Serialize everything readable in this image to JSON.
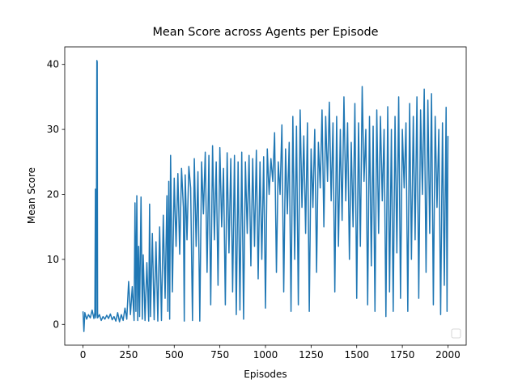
{
  "chart_data": {
    "type": "line",
    "title": "Mean Score across Agents per Episode",
    "x_label": "Episodes",
    "y_label": "Mean Score",
    "color": "#1f77b4",
    "legend": "lower right",
    "xlim": [
      -100,
      2100
    ],
    "ylim": [
      -3.2,
      42.7
    ],
    "xticks": [
      0,
      250,
      500,
      750,
      1000,
      1250,
      1500,
      1750,
      2000
    ],
    "yticks": [
      0,
      10,
      20,
      30,
      40
    ],
    "x": [
      0,
      5,
      10,
      20,
      30,
      40,
      50,
      60,
      65,
      68,
      70,
      72,
      76,
      78,
      80,
      90,
      100,
      110,
      120,
      130,
      140,
      150,
      160,
      170,
      180,
      190,
      200,
      210,
      220,
      230,
      240,
      250,
      260,
      270,
      280,
      285,
      290,
      295,
      300,
      305,
      310,
      318,
      325,
      330,
      340,
      350,
      360,
      365,
      370,
      380,
      390,
      400,
      410,
      420,
      430,
      440,
      450,
      460,
      465,
      470,
      475,
      480,
      490,
      500,
      510,
      520,
      530,
      540,
      550,
      555,
      560,
      570,
      580,
      590,
      600,
      610,
      620,
      630,
      640,
      650,
      660,
      670,
      680,
      690,
      700,
      710,
      720,
      730,
      740,
      750,
      760,
      770,
      780,
      790,
      800,
      810,
      820,
      830,
      840,
      850,
      860,
      870,
      880,
      890,
      900,
      910,
      920,
      930,
      940,
      950,
      960,
      970,
      980,
      990,
      1000,
      1010,
      1020,
      1030,
      1040,
      1050,
      1060,
      1070,
      1080,
      1090,
      1100,
      1110,
      1120,
      1130,
      1140,
      1150,
      1160,
      1170,
      1180,
      1190,
      1200,
      1210,
      1220,
      1230,
      1240,
      1250,
      1260,
      1270,
      1280,
      1290,
      1300,
      1310,
      1320,
      1330,
      1340,
      1350,
      1360,
      1370,
      1380,
      1390,
      1400,
      1410,
      1420,
      1430,
      1440,
      1450,
      1460,
      1470,
      1480,
      1490,
      1500,
      1510,
      1520,
      1530,
      1540,
      1550,
      1560,
      1570,
      1580,
      1590,
      1600,
      1610,
      1620,
      1630,
      1640,
      1650,
      1660,
      1670,
      1680,
      1690,
      1700,
      1710,
      1720,
      1730,
      1740,
      1750,
      1760,
      1770,
      1780,
      1790,
      1800,
      1810,
      1820,
      1830,
      1840,
      1850,
      1860,
      1870,
      1880,
      1890,
      1900,
      1910,
      1920,
      1930,
      1940,
      1950,
      1960,
      1970,
      1980,
      1990,
      1995,
      2000
    ],
    "values": [
      2,
      -1.1,
      1.8,
      0.8,
      1.5,
      1,
      2.2,
      0.9,
      1.8,
      20.8,
      1,
      1.5,
      40.6,
      40.4,
      1,
      1.5,
      0.6,
      1.2,
      0.8,
      1.4,
      0.9,
      1.6,
      0.7,
      1.2,
      0.5,
      1.8,
      0.4,
      1.5,
      0.6,
      2.5,
      0.8,
      6.6,
      1.5,
      5.8,
      0.6,
      18.7,
      2,
      19.8,
      0.6,
      12,
      1.2,
      19.6,
      0.8,
      10.7,
      0.6,
      9.5,
      0.5,
      18.5,
      1.2,
      14,
      0.7,
      12.7,
      0.5,
      15,
      0.6,
      16.8,
      4,
      19.8,
      2,
      22,
      0.8,
      26,
      5,
      22.5,
      12,
      23.2,
      10.8,
      24,
      18,
      0.5,
      23,
      13,
      24.3,
      21,
      0.6,
      25.5,
      12,
      23.5,
      0.5,
      25,
      17,
      26.5,
      8,
      26,
      3,
      27.5,
      13,
      25,
      6,
      27.2,
      15,
      24,
      3,
      26.4,
      11,
      25.5,
      5,
      26,
      1.5,
      25,
      2.2,
      26.5,
      0.8,
      25,
      14,
      26,
      9,
      25.5,
      12,
      26.8,
      7,
      25,
      10,
      25.8,
      2.5,
      27,
      20,
      25.5,
      22,
      29.5,
      8,
      25,
      20,
      30.7,
      5,
      27,
      17,
      28,
      2,
      32,
      10,
      30.5,
      3,
      33,
      18,
      29,
      14,
      31,
      2,
      27,
      18,
      30,
      8,
      28,
      21,
      33,
      15,
      32,
      22,
      34.2,
      19,
      31,
      5,
      32,
      12,
      30,
      16,
      35,
      19,
      31,
      10,
      28,
      15,
      34,
      4,
      31,
      12,
      36.6,
      22,
      30,
      3,
      32,
      9,
      30.5,
      2,
      33,
      14,
      32,
      19,
      30,
      1.2,
      33.5,
      5,
      30,
      2,
      32,
      11,
      35,
      4,
      30,
      21,
      31,
      2,
      34,
      10,
      32,
      13,
      35,
      4,
      33,
      20,
      36.2,
      8,
      34.5,
      14,
      35.5,
      3,
      32,
      18,
      30,
      1.5,
      31,
      6,
      33.4,
      2,
      29
    ]
  }
}
